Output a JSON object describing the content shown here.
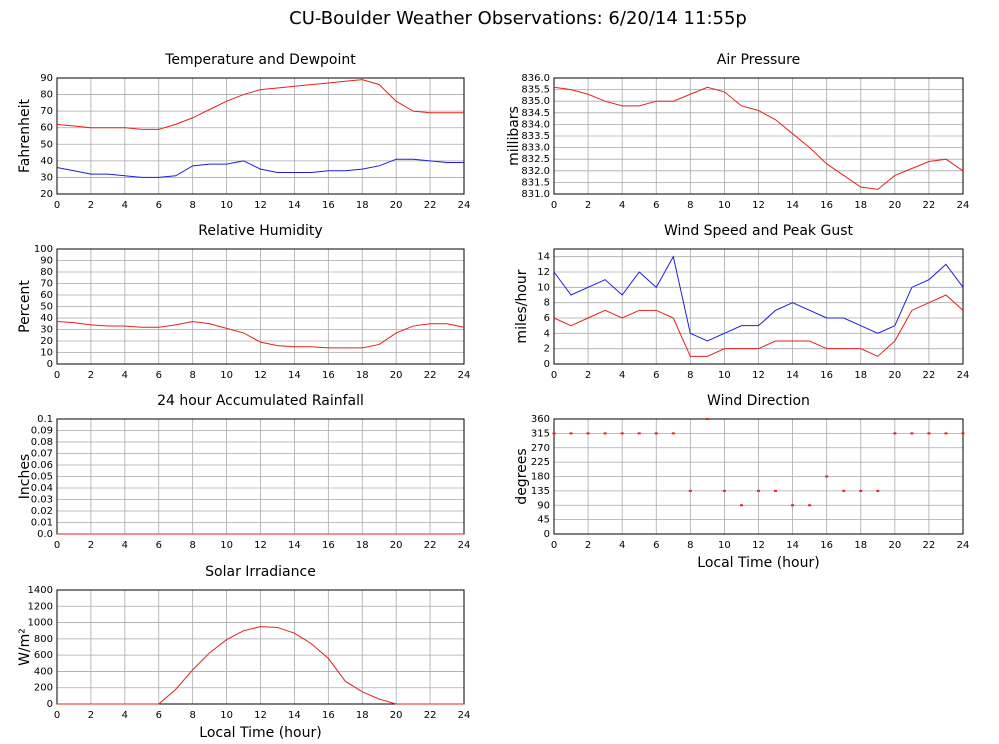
{
  "title": "CU-Boulder Weather Observations: 6/20/14 11:55p",
  "chart_data": [
    {
      "type": "line",
      "title": "Temperature and Dewpoint",
      "ylabel": "Fahrenheit",
      "x": [
        0,
        1,
        2,
        3,
        4,
        5,
        6,
        7,
        8,
        9,
        10,
        11,
        12,
        13,
        14,
        15,
        16,
        17,
        18,
        19,
        20,
        21,
        22,
        23,
        24
      ],
      "series": [
        {
          "color": "#e8201c",
          "values": [
            62,
            61,
            60,
            60,
            60,
            59,
            59,
            62,
            66,
            71,
            76,
            80,
            83,
            84,
            85,
            86,
            87,
            88,
            89,
            86,
            76,
            70,
            69,
            69,
            69
          ]
        },
        {
          "color": "#1c1ce0",
          "values": [
            36,
            34,
            32,
            32,
            31,
            30,
            30,
            31,
            37,
            38,
            38,
            40,
            35,
            33,
            33,
            33,
            34,
            34,
            35,
            37,
            41,
            41,
            40,
            39,
            39
          ]
        }
      ],
      "xlim": [
        0,
        24
      ],
      "xticks": [
        0,
        2,
        4,
        6,
        8,
        10,
        12,
        14,
        16,
        18,
        20,
        22,
        24
      ],
      "ylim": [
        20,
        90
      ],
      "yticks": [
        20,
        30,
        40,
        50,
        60,
        70,
        80,
        90
      ],
      "grid": true
    },
    {
      "type": "line",
      "title": "Air Pressure",
      "ylabel": "millibars",
      "x": [
        0,
        1,
        2,
        3,
        4,
        5,
        6,
        7,
        8,
        9,
        10,
        11,
        12,
        13,
        14,
        15,
        16,
        17,
        18,
        19,
        20,
        21,
        22,
        23,
        24
      ],
      "series": [
        {
          "color": "#e8201c",
          "values": [
            835.6,
            835.5,
            835.3,
            835.0,
            834.8,
            834.8,
            835.0,
            835.0,
            835.3,
            835.6,
            835.4,
            834.8,
            834.6,
            834.2,
            833.6,
            833.0,
            832.3,
            831.8,
            831.3,
            831.2,
            831.8,
            832.1,
            832.4,
            832.5,
            832.0
          ]
        }
      ],
      "xlim": [
        0,
        24
      ],
      "xticks": [
        0,
        2,
        4,
        6,
        8,
        10,
        12,
        14,
        16,
        18,
        20,
        22,
        24
      ],
      "ylim": [
        831,
        836
      ],
      "yticks": [
        {
          "value": 831,
          "label": "831.0"
        },
        831.5,
        {
          "value": 832,
          "label": "832.0"
        },
        832.5,
        {
          "value": 833,
          "label": "833.0"
        },
        833.5,
        {
          "value": 834,
          "label": "834.0"
        },
        834.5,
        {
          "value": 835,
          "label": "835.0"
        },
        835.5,
        {
          "value": 836,
          "label": "836.0"
        }
      ],
      "grid": true
    },
    {
      "type": "line",
      "title": "Relative Humidity",
      "ylabel": "Percent",
      "x": [
        0,
        1,
        2,
        3,
        4,
        5,
        6,
        7,
        8,
        9,
        10,
        11,
        12,
        13,
        14,
        15,
        16,
        17,
        18,
        19,
        20,
        21,
        22,
        23,
        24
      ],
      "series": [
        {
          "color": "#e8201c",
          "values": [
            37,
            36,
            34,
            33,
            33,
            32,
            32,
            34,
            37,
            35,
            31,
            27,
            19,
            16,
            15,
            15,
            14,
            14,
            14,
            17,
            27,
            33,
            35,
            35,
            32
          ]
        }
      ],
      "xlim": [
        0,
        24
      ],
      "xticks": [
        0,
        2,
        4,
        6,
        8,
        10,
        12,
        14,
        16,
        18,
        20,
        22,
        24
      ],
      "ylim": [
        0,
        100
      ],
      "yticks": [
        0,
        10,
        20,
        30,
        40,
        50,
        60,
        70,
        80,
        90,
        100
      ],
      "grid": true
    },
    {
      "type": "line",
      "title": "Wind Speed and Peak Gust",
      "ylabel": "miles/hour",
      "x": [
        0,
        1,
        2,
        3,
        4,
        5,
        6,
        7,
        8,
        9,
        10,
        11,
        12,
        13,
        14,
        15,
        16,
        17,
        18,
        19,
        20,
        21,
        22,
        23,
        24
      ],
      "series": [
        {
          "color": "#1c1ce0",
          "values": [
            12,
            9,
            10,
            11,
            9,
            12,
            10,
            14,
            4,
            3,
            4,
            5,
            5,
            7,
            8,
            7,
            6,
            6,
            5,
            4,
            5,
            10,
            11,
            13,
            10
          ]
        },
        {
          "color": "#e8201c",
          "values": [
            6,
            5,
            6,
            7,
            6,
            7,
            7,
            6,
            1,
            1,
            2,
            2,
            2,
            3,
            3,
            3,
            2,
            2,
            2,
            1,
            3,
            7,
            8,
            9,
            7
          ]
        }
      ],
      "xlim": [
        0,
        24
      ],
      "xticks": [
        0,
        2,
        4,
        6,
        8,
        10,
        12,
        14,
        16,
        18,
        20,
        22,
        24
      ],
      "ylim": [
        0,
        15
      ],
      "yticks": [
        0,
        2,
        4,
        6,
        8,
        10,
        12,
        14
      ],
      "grid": true
    },
    {
      "type": "line",
      "title": "24 hour Accumulated Rainfall",
      "ylabel": "Inches",
      "x": [
        0,
        1,
        2,
        3,
        4,
        5,
        6,
        7,
        8,
        9,
        10,
        11,
        12,
        13,
        14,
        15,
        16,
        17,
        18,
        19,
        20,
        21,
        22,
        23,
        24
      ],
      "series": [
        {
          "color": "#e8201c",
          "values": [
            0,
            0,
            0,
            0,
            0,
            0,
            0,
            0,
            0,
            0,
            0,
            0,
            0,
            0,
            0,
            0,
            0,
            0,
            0,
            0,
            0,
            0,
            0,
            0,
            0
          ]
        }
      ],
      "xlim": [
        0,
        24
      ],
      "xticks": [
        0,
        2,
        4,
        6,
        8,
        10,
        12,
        14,
        16,
        18,
        20,
        22,
        24
      ],
      "ylim": [
        0,
        0.1
      ],
      "yticks": [
        {
          "value": 0,
          "label": "0.0"
        },
        0.01,
        0.02,
        0.03,
        0.04,
        0.05,
        0.06,
        0.07,
        0.08,
        0.09,
        0.1
      ],
      "grid": true
    },
    {
      "type": "scatter",
      "title": "Wind Direction",
      "ylabel": "degrees",
      "xlabel": "Local Time (hour)",
      "x": [
        0,
        1,
        2,
        3,
        4,
        5,
        6,
        7,
        8,
        9,
        10,
        11,
        12,
        13,
        14,
        15,
        16,
        17,
        18,
        19,
        20,
        21,
        22,
        23,
        24
      ],
      "series": [
        {
          "color": "#e8201c",
          "values": [
            315,
            315,
            315,
            315,
            315,
            315,
            315,
            315,
            135,
            360,
            135,
            90,
            135,
            135,
            90,
            90,
            180,
            135,
            135,
            135,
            315,
            315,
            315,
            315,
            315
          ]
        }
      ],
      "xlim": [
        0,
        24
      ],
      "xticks": [
        0,
        2,
        4,
        6,
        8,
        10,
        12,
        14,
        16,
        18,
        20,
        22,
        24
      ],
      "ylim": [
        0,
        360
      ],
      "yticks": [
        0,
        45,
        90,
        135,
        180,
        225,
        270,
        315,
        360
      ],
      "grid": true
    },
    {
      "type": "line",
      "title": "Solar Irradiance",
      "ylabel": "W/m²",
      "xlabel": "Local Time (hour)",
      "x": [
        0,
        1,
        2,
        3,
        4,
        5,
        6,
        7,
        8,
        9,
        10,
        11,
        12,
        13,
        14,
        15,
        16,
        17,
        18,
        19,
        20,
        21,
        22,
        23,
        24
      ],
      "series": [
        {
          "color": "#e8201c",
          "values": [
            0,
            0,
            0,
            0,
            0,
            0,
            0,
            180,
            420,
            630,
            790,
            900,
            950,
            940,
            870,
            740,
            560,
            280,
            150,
            60,
            0,
            0,
            0,
            0,
            0
          ]
        }
      ],
      "xlim": [
        0,
        24
      ],
      "xticks": [
        0,
        2,
        4,
        6,
        8,
        10,
        12,
        14,
        16,
        18,
        20,
        22,
        24
      ],
      "ylim": [
        0,
        1400
      ],
      "yticks": [
        0,
        200,
        400,
        600,
        800,
        1000,
        1200,
        1400
      ],
      "grid": true
    }
  ]
}
